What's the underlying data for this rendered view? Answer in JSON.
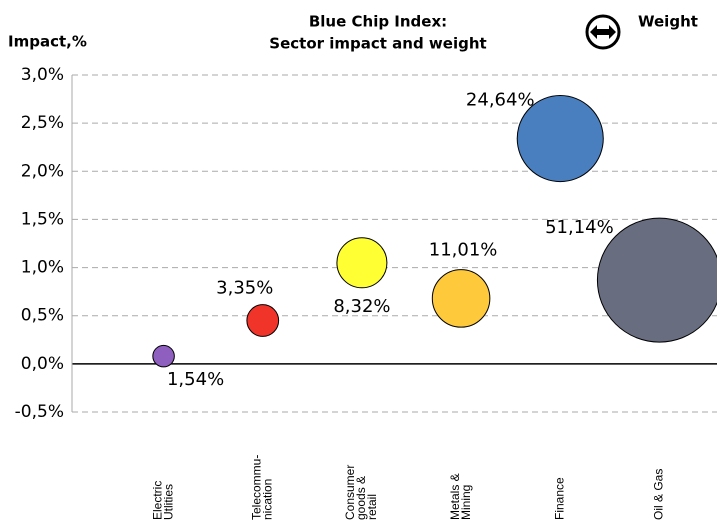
{
  "chart_data": {
    "type": "bubble",
    "title": "Blue Chip Index:",
    "subtitle": "Sector impact and weight",
    "y_label": "Impact,%",
    "size_legend": "Weight",
    "categories": [
      [
        "Electric",
        "Utlities"
      ],
      [
        "Telecommu-",
        "nication"
      ],
      [
        "Consumer",
        "goods &",
        "retail"
      ],
      [
        "Metals &",
        "Mining"
      ],
      [
        "Finance"
      ],
      [
        "Oil & Gas"
      ]
    ],
    "values": [
      0.08,
      0.45,
      1.05,
      0.68,
      2.34,
      0.87
    ],
    "sizes": [
      1.54,
      3.35,
      8.32,
      11.01,
      24.64,
      51.14
    ],
    "value_labels": [
      "1,54%",
      "3,35%",
      "8,32%",
      "11,01%",
      "24,64%",
      "51,14%"
    ],
    "colors": [
      "#8e5fbf",
      "#f0342a",
      "#ffff33",
      "#ffc93c",
      "#4a7fbf",
      "#686e80"
    ],
    "ylim": [
      -0.5,
      3.0
    ],
    "yticks": [
      {
        "value": -0.5,
        "label": "-0,5%"
      },
      {
        "value": 0,
        "label": "0,0%"
      },
      {
        "value": 0.5,
        "label": "0,5%"
      },
      {
        "value": 1,
        "label": "1,0%"
      },
      {
        "value": 1.5,
        "label": "1,5%"
      },
      {
        "value": 2,
        "label": "2,0%"
      },
      {
        "value": 2.5,
        "label": "2,5%"
      },
      {
        "value": 3,
        "label": "3,0%"
      }
    ],
    "grid": true
  }
}
